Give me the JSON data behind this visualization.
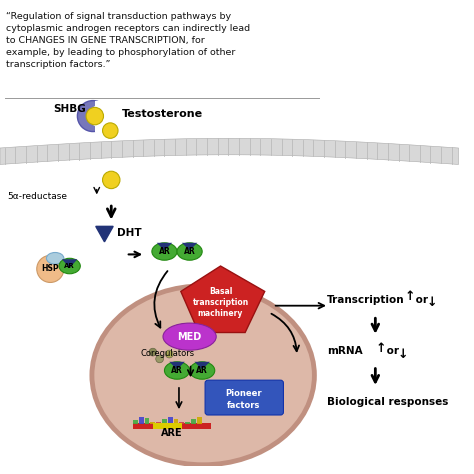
{
  "quote_text": "“Regulation of signal transduction pathways by\ncytoplasmic androgen receptors can indirectly lead\nto CHANGES IN GENE TRANSCRIPTION, for\nexample, by leading to phosphorylation of other\ntranscription factors.”",
  "shbg_label": "SHBG",
  "testosterone_label": "Testosterone",
  "reductase_label": "5α-reductase",
  "dht_label": "DHT",
  "hsp_label": "HSP",
  "ar_label": "AR",
  "med_label": "MED",
  "coregulators_label": "Coregulators",
  "basal_label": "Basal\ntranscription\nmachinery",
  "pioneer_label": "Pioneer\nfactors",
  "are_label": "ARE",
  "transcription_label": "Transcription",
  "mrna_label": "mRNA",
  "bio_label": "Biological responses",
  "up_arrow": "↑",
  "down_arrow": "↓",
  "or_text": "or",
  "bg_color": "#ffffff",
  "quote_color": "#111111",
  "membrane_fill": "#d8d8d8",
  "membrane_edge": "#aaaaaa",
  "shbg_color": "#7777bb",
  "testosterone_color": "#f0d020",
  "ar_green": "#44aa33",
  "hsp_blue": "#aaccdd",
  "hsp_peach": "#f0bb88",
  "dht_navy": "#223377",
  "basal_red": "#cc2222",
  "med_purple": "#bb33cc",
  "pioneer_blue": "#3355bb",
  "are_red": "#cc2222",
  "cell_fill": "#ddb8a8",
  "cell_edge": "#c09080",
  "coregulator_gray": "#999966"
}
